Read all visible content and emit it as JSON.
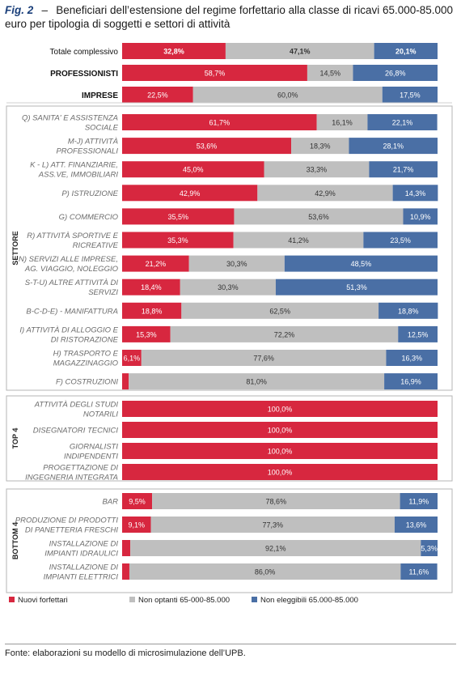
{
  "title": {
    "fig_label": "Fig. 2",
    "dash": "–",
    "text": "Beneficiari dell’estensione del regime forfettario alla classe di ricavi 65.000-85.000 euro per tipologia di soggetti e settori di attività"
  },
  "source": "Fonte: elaborazioni su modello di microsimulazione dell’UPB.",
  "chart_data": {
    "type": "bar",
    "orientation": "horizontal",
    "stacked": "100%",
    "xlim": [
      0,
      100
    ],
    "series": [
      {
        "name": "Nuovi forfettari",
        "color": "#d7273f"
      },
      {
        "name": "Non optanti 65-000-85.000",
        "color": "#bfbfbf"
      },
      {
        "name": "Non eleggibili 65.000-85.000",
        "color": "#4a6fa5"
      }
    ],
    "groups": [
      {
        "label": "",
        "rows": [
          {
            "label": "Totale complessivo",
            "style": "total",
            "values": [
              32.8,
              47.1,
              20.1
            ],
            "labels": [
              "32,8%",
              "47,1%",
              "20,1%"
            ]
          },
          {
            "label": "PROFESSIONISTI",
            "style": "caps",
            "values": [
              58.7,
              14.5,
              26.8
            ],
            "labels": [
              "58,7%",
              "14,5%",
              "26,8%"
            ]
          },
          {
            "label": "IMPRESE",
            "style": "caps",
            "values": [
              22.5,
              60.0,
              17.5
            ],
            "labels": [
              "22,5%",
              "60,0%",
              "17,5%"
            ]
          }
        ]
      },
      {
        "label": "SETTORE",
        "rows": [
          {
            "label": "Q) SANITA' E ASSISTENZA SOCIALE",
            "lines": [
              "Q) SANITA' E ASSISTENZA",
              "SOCIALE"
            ],
            "values": [
              61.7,
              16.1,
              22.1
            ],
            "labels": [
              "61,7%",
              "16,1%",
              "22,1%"
            ]
          },
          {
            "label": "M-J) ATTIVITÀ PROFESSIONALI",
            "lines": [
              "M-J) ATTIVITÀ",
              "PROFESSIONALI"
            ],
            "values": [
              53.6,
              18.3,
              28.1
            ],
            "labels": [
              "53,6%",
              "18,3%",
              "28,1%"
            ]
          },
          {
            "label": "K - L) ATT. FINANZIARIE, ASS.VE, IMMOBILIARI",
            "lines": [
              "K - L) ATT. FINANZIARIE,",
              "ASS.VE, IMMOBILIARI"
            ],
            "values": [
              45.0,
              33.3,
              21.7
            ],
            "labels": [
              "45,0%",
              "33,3%",
              "21,7%"
            ]
          },
          {
            "label": "P) ISTRUZIONE",
            "lines": [
              "P) ISTRUZIONE"
            ],
            "values": [
              42.9,
              42.9,
              14.3
            ],
            "labels": [
              "42,9%",
              "42,9%",
              "14,3%"
            ]
          },
          {
            "label": "G) COMMERCIO",
            "lines": [
              "G) COMMERCIO"
            ],
            "values": [
              35.5,
              53.6,
              10.9
            ],
            "labels": [
              "35,5%",
              "53,6%",
              "10,9%"
            ]
          },
          {
            "label": "R) ATTIVITÀ SPORTIVE E RICREATIVE",
            "lines": [
              "R) ATTIVITÀ SPORTIVE E",
              "RICREATIVE"
            ],
            "values": [
              35.3,
              41.2,
              23.5
            ],
            "labels": [
              "35,3%",
              "41,2%",
              "23,5%"
            ]
          },
          {
            "label": "N) SERVIZI ALLE IMPRESE, AG. VIAGGIO, NOLEGGIO",
            "lines": [
              "N) SERVIZI ALLE IMPRESE,",
              "AG. VIAGGIO, NOLEGGIO"
            ],
            "values": [
              21.2,
              30.3,
              48.5
            ],
            "labels": [
              "21,2%",
              "30,3%",
              "48,5%"
            ]
          },
          {
            "label": "S-T-U) ALTRE ATTIVITÀ DI SERVIZI",
            "lines": [
              "S-T-U) ALTRE ATTIVITÀ DI",
              "SERVIZI"
            ],
            "values": [
              18.4,
              30.3,
              51.3
            ],
            "labels": [
              "18,4%",
              "30,3%",
              "51,3%"
            ]
          },
          {
            "label": "B-C-D-E) - MANIFATTURA",
            "lines": [
              "B-C-D-E) - MANIFATTURA"
            ],
            "values": [
              18.8,
              62.5,
              18.8
            ],
            "labels": [
              "18,8%",
              "62,5%",
              "18,8%"
            ]
          },
          {
            "label": "I) ATTIVITÀ DI ALLOGGIO E DI RISTORAZIONE",
            "lines": [
              "I) ATTIVITÀ DI ALLOGGIO E",
              "DI RISTORAZIONE"
            ],
            "values": [
              15.3,
              72.2,
              12.5
            ],
            "labels": [
              "15,3%",
              "72,2%",
              "12,5%"
            ]
          },
          {
            "label": "H) TRASPORTO E MAGAZZINAGGIO",
            "lines": [
              "H) TRASPORTO E",
              "MAGAZZINAGGIO"
            ],
            "values": [
              6.1,
              77.6,
              16.3
            ],
            "labels": [
              "6,1%",
              "77,6%",
              "16,3%"
            ]
          },
          {
            "label": "F) COSTRUZIONI",
            "lines": [
              "F) COSTRUZIONI"
            ],
            "values": [
              2.1,
              81.0,
              16.9
            ],
            "labels": [
              "",
              "81,0%",
              "16,9%"
            ]
          }
        ]
      },
      {
        "label": "TOP 4",
        "rows": [
          {
            "label": "ATTIVITÀ DEGLI STUDI NOTARILI",
            "lines": [
              "ATTIVITÀ DEGLI STUDI",
              "NOTARILI"
            ],
            "values": [
              100.0,
              0,
              0
            ],
            "labels": [
              "100,0%",
              "",
              ""
            ]
          },
          {
            "label": "DISEGNATORI TECNICI",
            "lines": [
              "DISEGNATORI TECNICI"
            ],
            "values": [
              100.0,
              0,
              0
            ],
            "labels": [
              "100,0%",
              "",
              ""
            ]
          },
          {
            "label": "GIORNALISTI INDIPENDENTI",
            "lines": [
              "GIORNALISTI",
              "INDIPENDENTI"
            ],
            "values": [
              100.0,
              0,
              0
            ],
            "labels": [
              "100,0%",
              "",
              ""
            ]
          },
          {
            "label": "PROGETTAZIONE DI INGEGNERIA INTEGRATA",
            "lines": [
              "PROGETTAZIONE DI",
              "INGEGNERIA INTEGRATA"
            ],
            "values": [
              100.0,
              0,
              0
            ],
            "labels": [
              "100,0%",
              "",
              ""
            ]
          }
        ]
      },
      {
        "label": "BOTTOM 4",
        "rows": [
          {
            "label": "BAR",
            "lines": [
              "BAR"
            ],
            "values": [
              9.5,
              78.6,
              11.9
            ],
            "labels": [
              "9,5%",
              "78,6%",
              "11,9%"
            ]
          },
          {
            "label": "PRODUZIONE DI PRODOTTI DI PANETTERIA FRESCHI",
            "lines": [
              "PRODUZIONE DI PRODOTTI",
              "DI PANETTERIA FRESCHI"
            ],
            "values": [
              9.1,
              77.3,
              13.6
            ],
            "labels": [
              "9,1%",
              "77,3%",
              "13,6%"
            ]
          },
          {
            "label": "INSTALLAZIONE DI IMPIANTI IDRAULICI",
            "lines": [
              "INSTALLAZIONE DI",
              "IMPIANTI IDRAULICI"
            ],
            "values": [
              2.6,
              92.1,
              5.3
            ],
            "labels": [
              "",
              "92,1%",
              "5,3%"
            ]
          },
          {
            "label": "INSTALLAZIONE DI IMPIANTI ELETTRICI",
            "lines": [
              "INSTALLAZIONE DI",
              "IMPIANTI ELETTRICI"
            ],
            "values": [
              2.3,
              86.0,
              11.6
            ],
            "labels": [
              "",
              "86,0%",
              "11,6%"
            ]
          }
        ]
      }
    ]
  }
}
